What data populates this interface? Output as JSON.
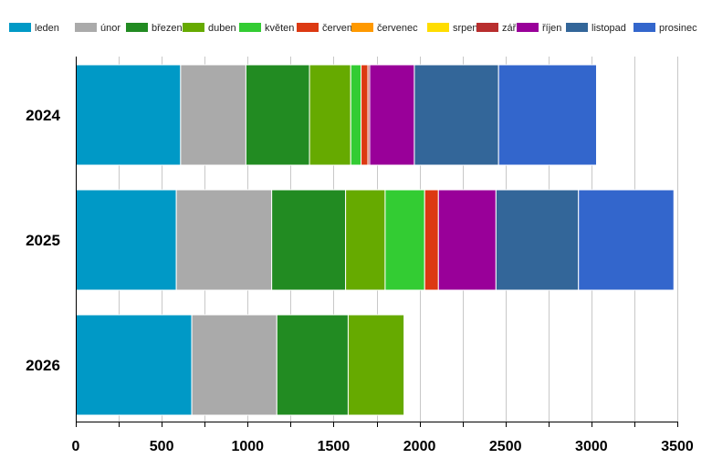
{
  "chart_data": {
    "type": "bar",
    "orientation": "horizontal",
    "stacked": true,
    "title": "",
    "xlabel": "",
    "ylabel": "",
    "xlim": [
      0,
      3500
    ],
    "xticks": [
      0,
      500,
      1000,
      1500,
      2000,
      2500,
      3000,
      3500
    ],
    "grid": true,
    "legend_position": "top",
    "categories": [
      "2024",
      "2025",
      "2026"
    ],
    "series": [
      {
        "name": "leden",
        "color": "#0099c6",
        "values": [
          610,
          585,
          675
        ]
      },
      {
        "name": "únor",
        "color": "#aaaaaa",
        "values": [
          380,
          555,
          495
        ]
      },
      {
        "name": "březen",
        "color": "#228b22",
        "values": [
          370,
          430,
          415
        ]
      },
      {
        "name": "duben",
        "color": "#66aa00",
        "values": [
          240,
          230,
          325
        ]
      },
      {
        "name": "květen",
        "color": "#33cc33",
        "values": [
          60,
          230,
          0
        ]
      },
      {
        "name": "červen",
        "color": "#dc3912",
        "values": [
          40,
          80,
          0
        ]
      },
      {
        "name": "červenec",
        "color": "#ff9900",
        "values": [
          0,
          0,
          0
        ]
      },
      {
        "name": "srpen",
        "color": "#ffdd00",
        "values": [
          0,
          0,
          0
        ]
      },
      {
        "name": "září",
        "color": "#b82e2e",
        "values": [
          10,
          0,
          0
        ]
      },
      {
        "name": "říjen",
        "color": "#990099",
        "values": [
          260,
          335,
          0
        ]
      },
      {
        "name": "listopad",
        "color": "#336699",
        "values": [
          490,
          480,
          0
        ]
      },
      {
        "name": "prosinec",
        "color": "#3366cc",
        "values": [
          570,
          555,
          0
        ]
      }
    ]
  }
}
